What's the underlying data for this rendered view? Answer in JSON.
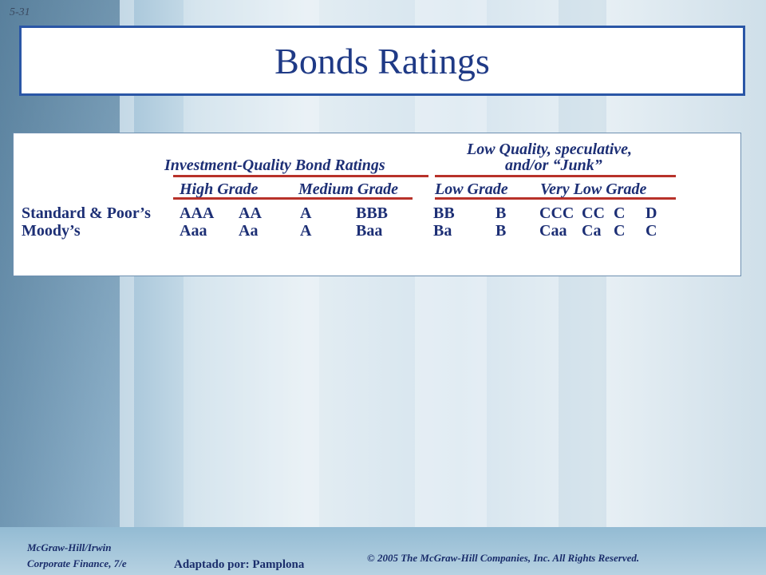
{
  "slide": {
    "number": "5-31",
    "title": "Bonds Ratings"
  },
  "table": {
    "low_quality_line1": "Low Quality, speculative,",
    "investment_quality": "Investment-Quality Bond Ratings",
    "low_quality_line2": "and/or “Junk”",
    "grades": [
      "High Grade",
      "Medium Grade",
      "Low Grade",
      "Very Low Grade"
    ],
    "rows": [
      {
        "label": "Standard & Poor’s",
        "ratings": [
          "AAA",
          "AA",
          "A",
          "BBB",
          "BB",
          "B",
          "CCC",
          "CC",
          "C",
          "D"
        ]
      },
      {
        "label": "Moody’s",
        "ratings": [
          "Aaa",
          "Aa",
          "A",
          "Baa",
          "Ba",
          "B",
          "Caa",
          "Ca",
          "C",
          "C"
        ]
      }
    ]
  },
  "footer": {
    "publisher": "McGraw-Hill/Irwin",
    "book": "Corporate Finance, 7/e",
    "adapted": "Adaptado por: Pamplona",
    "copyright": "© 2005  The McGraw-Hill  Companies, Inc.  All Rights Reserved."
  },
  "colors": {
    "title_text": "#1f3a86",
    "title_border": "#2a56a6",
    "body_text": "#1d2f75",
    "underline": "#b8322a"
  }
}
